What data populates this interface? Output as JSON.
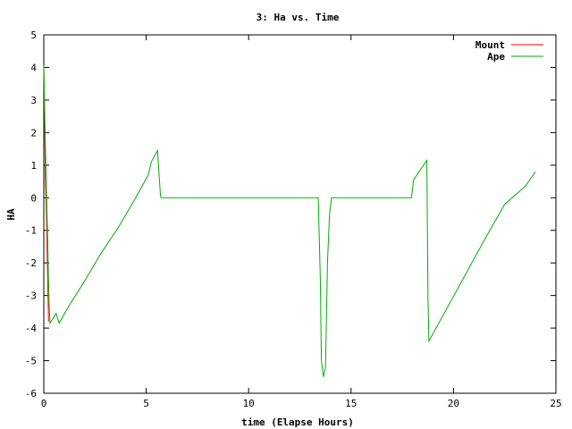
{
  "chart_data": {
    "type": "line",
    "title": "3: Ha vs. Time",
    "xlabel": "time (Elapse Hours)",
    "ylabel": "HA",
    "xlim": [
      0,
      25
    ],
    "ylim": [
      -6,
      5
    ],
    "xticks": [
      0,
      5,
      10,
      15,
      20,
      25
    ],
    "yticks": [
      -6,
      -5,
      -4,
      -3,
      -2,
      -1,
      0,
      1,
      2,
      3,
      4,
      5
    ],
    "grid": false,
    "legend_position": "top-right",
    "series": [
      {
        "name": "Mount",
        "color": "#ff0000",
        "points": [
          [
            0.0,
            4.05
          ],
          [
            0.04,
            2.5
          ],
          [
            0.08,
            0.5
          ],
          [
            0.12,
            -0.25
          ],
          [
            0.16,
            -1.5
          ],
          [
            0.2,
            -2.8
          ],
          [
            0.23,
            -3.8
          ]
        ]
      },
      {
        "name": "Ape",
        "color": "#00b000",
        "points": [
          [
            0.0,
            4.05
          ],
          [
            0.05,
            2.4
          ],
          [
            0.1,
            1.0
          ],
          [
            0.14,
            0.0
          ],
          [
            0.18,
            -1.0
          ],
          [
            0.22,
            -2.2
          ],
          [
            0.26,
            -3.3
          ],
          [
            0.3,
            -3.85
          ],
          [
            0.45,
            -3.7
          ],
          [
            0.6,
            -3.55
          ],
          [
            0.75,
            -3.85
          ],
          [
            1.2,
            -3.35
          ],
          [
            2.0,
            -2.55
          ],
          [
            2.8,
            -1.7
          ],
          [
            3.6,
            -0.95
          ],
          [
            4.4,
            -0.1
          ],
          [
            5.1,
            0.7
          ],
          [
            5.25,
            1.1
          ],
          [
            5.55,
            1.45
          ],
          [
            5.7,
            0.05
          ],
          [
            5.75,
            0.0
          ],
          [
            13.4,
            0.0
          ],
          [
            13.5,
            -2.5
          ],
          [
            13.55,
            -5.0
          ],
          [
            13.65,
            -5.5
          ],
          [
            13.75,
            -5.2
          ],
          [
            13.85,
            -2.0
          ],
          [
            13.95,
            -0.5
          ],
          [
            14.05,
            0.0
          ],
          [
            17.95,
            0.0
          ],
          [
            18.05,
            0.55
          ],
          [
            18.7,
            1.15
          ],
          [
            18.75,
            -3.0
          ],
          [
            18.8,
            -4.4
          ],
          [
            19.5,
            -3.6
          ],
          [
            20.5,
            -2.45
          ],
          [
            21.5,
            -1.3
          ],
          [
            22.5,
            -0.2
          ],
          [
            23.5,
            0.35
          ],
          [
            24.0,
            0.8
          ]
        ]
      }
    ]
  }
}
